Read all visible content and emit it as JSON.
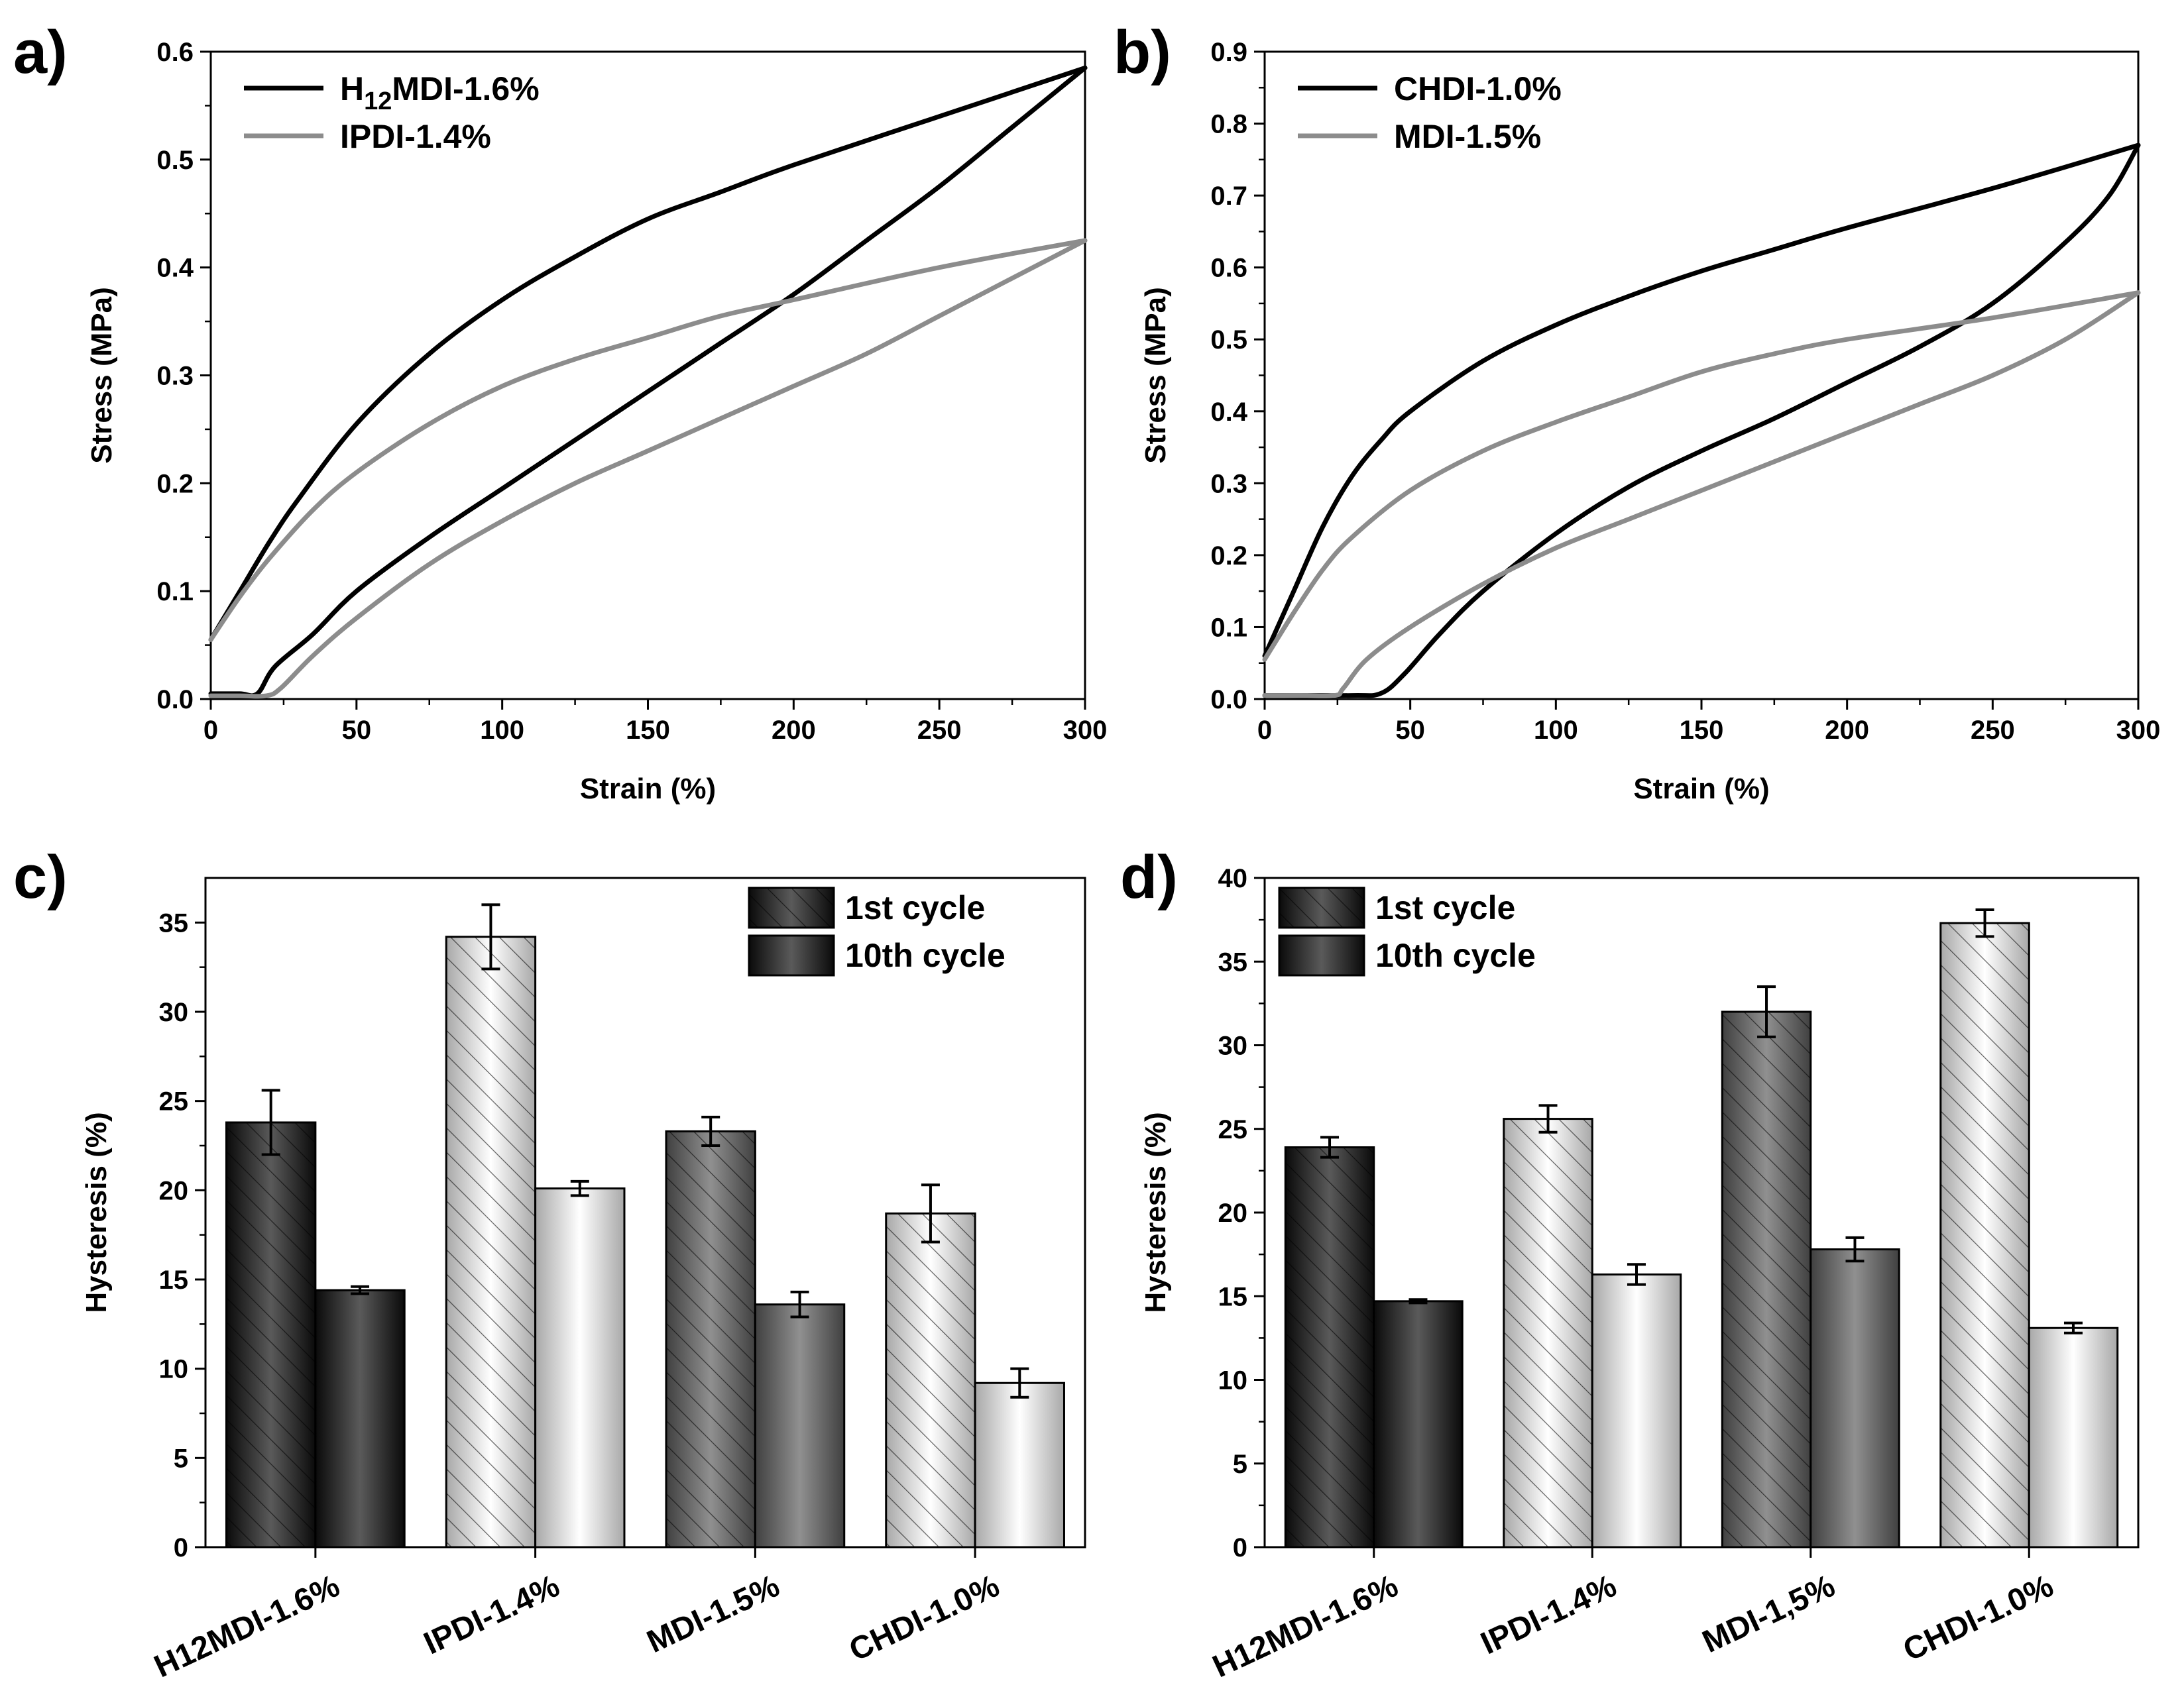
{
  "colors": {
    "black_series": "#000000",
    "gray_series": "#8c8c8c",
    "bar_dark": "#333333",
    "bar_mid": "#6e6e6e",
    "bar_light": "#f0f0f0"
  },
  "chart_data": [
    {
      "panel": "a)",
      "type": "line",
      "xlabel": "Strain (%)",
      "ylabel": "Stress (MPa)",
      "xlim": [
        0,
        300
      ],
      "ylim": [
        0,
        0.6
      ],
      "xticks": [
        0,
        50,
        100,
        150,
        200,
        250,
        300
      ],
      "yticks": [
        "0.0",
        "0.1",
        "0.2",
        "0.3",
        "0.4",
        "0.5",
        "0.6"
      ],
      "series": [
        {
          "name": "H12MDI-1.6%",
          "legend": {
            "main": "H",
            "sub": "12",
            "rest": "MDI-1.6%"
          },
          "color": "#000000",
          "loading": [
            [
              0,
              0.055
            ],
            [
              10,
              0.1
            ],
            [
              20,
              0.145
            ],
            [
              30,
              0.185
            ],
            [
              50,
              0.255
            ],
            [
              75,
              0.32
            ],
            [
              100,
              0.37
            ],
            [
              125,
              0.41
            ],
            [
              150,
              0.445
            ],
            [
              175,
              0.47
            ],
            [
              200,
              0.495
            ],
            [
              250,
              0.54
            ],
            [
              300,
              0.585
            ]
          ],
          "unloading": [
            [
              300,
              0.585
            ],
            [
              275,
              0.53
            ],
            [
              250,
              0.475
            ],
            [
              225,
              0.425
            ],
            [
              200,
              0.375
            ],
            [
              175,
              0.33
            ],
            [
              150,
              0.285
            ],
            [
              125,
              0.24
            ],
            [
              100,
              0.195
            ],
            [
              75,
              0.15
            ],
            [
              50,
              0.1
            ],
            [
              35,
              0.06
            ],
            [
              22,
              0.03
            ],
            [
              16,
              0.005
            ],
            [
              10,
              0.005
            ],
            [
              0,
              0.005
            ]
          ]
        },
        {
          "name": "IPDI-1.4%",
          "legend": {
            "main": "IPDI-1.4%",
            "sub": "",
            "rest": ""
          },
          "color": "#8c8c8c",
          "loading": [
            [
              0,
              0.055
            ],
            [
              10,
              0.095
            ],
            [
              20,
              0.13
            ],
            [
              35,
              0.175
            ],
            [
              50,
              0.21
            ],
            [
              75,
              0.255
            ],
            [
              100,
              0.29
            ],
            [
              125,
              0.315
            ],
            [
              150,
              0.335
            ],
            [
              175,
              0.355
            ],
            [
              200,
              0.37
            ],
            [
              250,
              0.4
            ],
            [
              300,
              0.425
            ]
          ],
          "unloading": [
            [
              300,
              0.425
            ],
            [
              275,
              0.39
            ],
            [
              250,
              0.355
            ],
            [
              225,
              0.32
            ],
            [
              200,
              0.29
            ],
            [
              175,
              0.26
            ],
            [
              150,
              0.23
            ],
            [
              125,
              0.2
            ],
            [
              100,
              0.165
            ],
            [
              75,
              0.125
            ],
            [
              50,
              0.075
            ],
            [
              35,
              0.04
            ],
            [
              24,
              0.01
            ],
            [
              19,
              0.003
            ],
            [
              10,
              0.003
            ],
            [
              0,
              0.003
            ]
          ]
        }
      ]
    },
    {
      "panel": "b)",
      "type": "line",
      "xlabel": "Strain (%)",
      "ylabel": "Stress (MPa)",
      "xlim": [
        0,
        300
      ],
      "ylim": [
        0,
        0.9
      ],
      "xticks": [
        0,
        50,
        100,
        150,
        200,
        250,
        300
      ],
      "yticks": [
        "0.0",
        "0.1",
        "0.2",
        "0.3",
        "0.4",
        "0.5",
        "0.6",
        "0.7",
        "0.8",
        "0.9"
      ],
      "series": [
        {
          "name": "CHDI-1.0%",
          "legend": {
            "main": "CHDI-1.0%",
            "sub": "",
            "rest": ""
          },
          "color": "#000000",
          "loading": [
            [
              0,
              0.06
            ],
            [
              10,
              0.15
            ],
            [
              20,
              0.24
            ],
            [
              30,
              0.31
            ],
            [
              40,
              0.36
            ],
            [
              50,
              0.4
            ],
            [
              75,
              0.47
            ],
            [
              100,
              0.52
            ],
            [
              125,
              0.56
            ],
            [
              150,
              0.595
            ],
            [
              175,
              0.625
            ],
            [
              200,
              0.655
            ],
            [
              250,
              0.71
            ],
            [
              300,
              0.77
            ]
          ],
          "unloading": [
            [
              300,
              0.77
            ],
            [
              290,
              0.7
            ],
            [
              275,
              0.635
            ],
            [
              250,
              0.55
            ],
            [
              225,
              0.49
            ],
            [
              200,
              0.44
            ],
            [
              175,
              0.39
            ],
            [
              150,
              0.345
            ],
            [
              125,
              0.295
            ],
            [
              100,
              0.23
            ],
            [
              75,
              0.15
            ],
            [
              60,
              0.09
            ],
            [
              48,
              0.035
            ],
            [
              40,
              0.008
            ],
            [
              30,
              0.005
            ],
            [
              0,
              0.005
            ]
          ]
        },
        {
          "name": "MDI-1.5%",
          "legend": {
            "main": "MDI-1.5%",
            "sub": "",
            "rest": ""
          },
          "color": "#8c8c8c",
          "loading": [
            [
              0,
              0.055
            ],
            [
              10,
              0.12
            ],
            [
              20,
              0.18
            ],
            [
              30,
              0.225
            ],
            [
              50,
              0.29
            ],
            [
              75,
              0.345
            ],
            [
              100,
              0.385
            ],
            [
              125,
              0.42
            ],
            [
              150,
              0.455
            ],
            [
              175,
              0.48
            ],
            [
              200,
              0.5
            ],
            [
              250,
              0.53
            ],
            [
              300,
              0.565
            ]
          ],
          "unloading": [
            [
              300,
              0.565
            ],
            [
              275,
              0.5
            ],
            [
              250,
              0.45
            ],
            [
              225,
              0.41
            ],
            [
              200,
              0.37
            ],
            [
              175,
              0.33
            ],
            [
              150,
              0.29
            ],
            [
              125,
              0.25
            ],
            [
              100,
              0.21
            ],
            [
              75,
              0.16
            ],
            [
              50,
              0.1
            ],
            [
              35,
              0.055
            ],
            [
              27,
              0.015
            ],
            [
              24,
              0.005
            ],
            [
              10,
              0.005
            ],
            [
              0,
              0.005
            ]
          ]
        }
      ]
    },
    {
      "panel": "c)",
      "type": "bar",
      "ylabel": "Hysteresis (%)",
      "ylim": [
        0,
        37.5
      ],
      "yticks": [
        0,
        5,
        10,
        15,
        20,
        25,
        30,
        35
      ],
      "categories": [
        "H12MDI-1.6%",
        "IPDI-1.4%",
        "MDI-1.5%",
        "CHDI-1.0%"
      ],
      "bar_shades": [
        "dark",
        "light",
        "mid",
        "light"
      ],
      "legend_position": "top-right",
      "series": [
        {
          "name": "1st cycle",
          "pattern": "hatched",
          "values": [
            23.8,
            34.2,
            23.3,
            18.7
          ],
          "errors": [
            1.8,
            1.8,
            0.8,
            1.6
          ]
        },
        {
          "name": "10th cycle",
          "pattern": "solid",
          "values": [
            14.4,
            20.1,
            13.6,
            9.2
          ],
          "errors": [
            0.2,
            0.4,
            0.7,
            0.8
          ]
        }
      ]
    },
    {
      "panel": "d)",
      "type": "bar",
      "ylabel": "Hysteresis (%)",
      "ylim": [
        0,
        40
      ],
      "yticks": [
        0,
        5,
        10,
        15,
        20,
        25,
        30,
        35,
        40
      ],
      "categories": [
        "H12MDI-1.6%",
        "IPDI-1.4%",
        "MDI-1,5%",
        "CHDI-1.0%"
      ],
      "bar_shades": [
        "dark",
        "light",
        "mid",
        "light"
      ],
      "legend_position": "top-left",
      "series": [
        {
          "name": "1st cycle",
          "pattern": "hatched",
          "values": [
            23.9,
            25.6,
            32.0,
            37.3
          ],
          "errors": [
            0.6,
            0.8,
            1.5,
            0.8
          ]
        },
        {
          "name": "10th cycle",
          "pattern": "solid",
          "values": [
            14.7,
            16.3,
            17.8,
            13.1
          ],
          "errors": [
            0.1,
            0.6,
            0.7,
            0.3
          ]
        }
      ]
    }
  ]
}
